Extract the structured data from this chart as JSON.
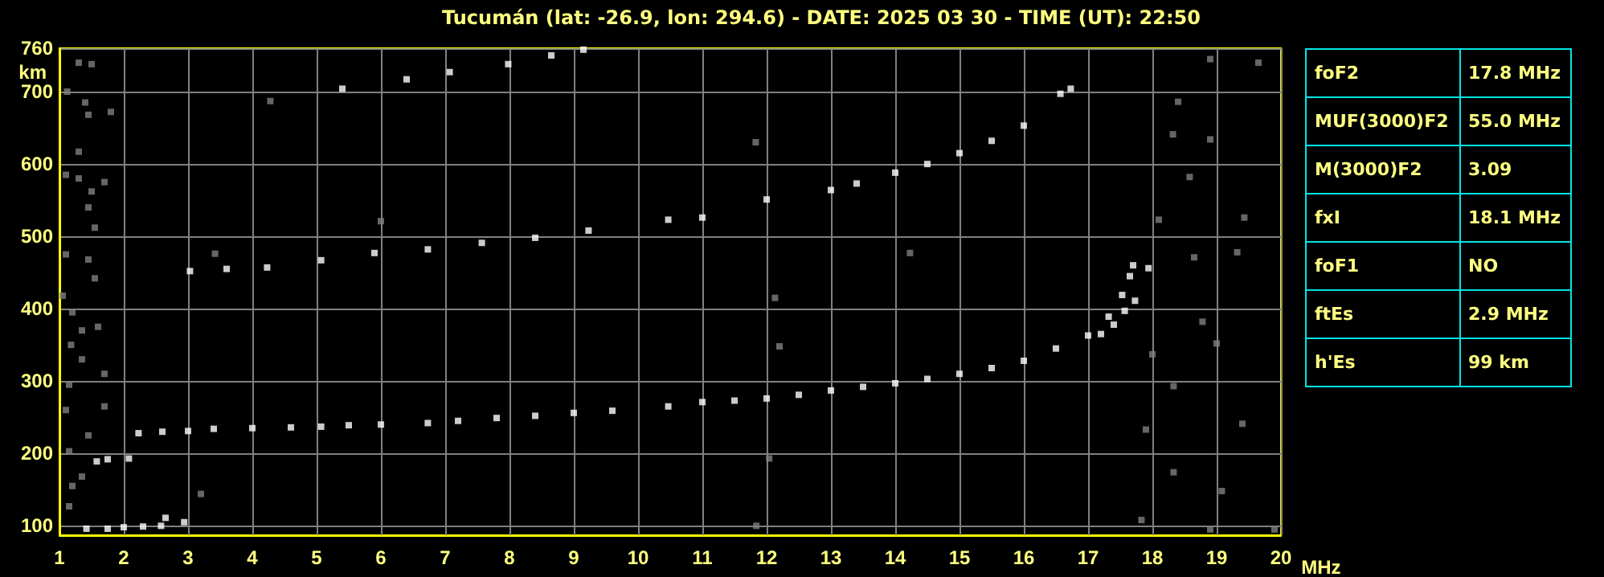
{
  "chart_data": [
    {
      "type": "scatter",
      "title": "Tucumán (lat: -26.9, lon: 294.6) - DATE: 2025 03 30 - TIME (UT): 22:50",
      "xlabel": "MHz",
      "ylabel": "km",
      "xlim": [
        1,
        20
      ],
      "xticks": [
        1,
        2,
        3,
        4,
        5,
        6,
        7,
        8,
        9,
        10,
        11,
        12,
        13,
        14,
        15,
        16,
        17,
        18,
        19,
        20
      ],
      "ylim": [
        87,
        760
      ],
      "yticks": [
        100,
        200,
        300,
        400,
        500,
        600,
        700,
        760
      ],
      "grid": true,
      "marker": "square",
      "series": [
        {
          "color": "#ffffff",
          "x": [
            2.23,
            2.6,
            3,
            3.4,
            4,
            4.6,
            5.07,
            5.5,
            6,
            6.73,
            7.2,
            7.8,
            8.4,
            9,
            9.6,
            10.47,
            11,
            11.5,
            12,
            12.5,
            13,
            13.5,
            14,
            14.5,
            15,
            15.5,
            16,
            16.5,
            17,
            17.32,
            17.53,
            17.65,
            17.7
          ],
          "values": [
            228,
            230,
            231,
            234,
            235,
            236,
            237,
            239,
            240,
            242,
            245,
            249,
            252,
            256,
            259,
            265,
            271,
            273,
            276,
            281,
            287,
            292,
            297,
            303,
            310,
            318,
            328,
            345,
            363,
            389,
            419,
            445,
            460
          ]
        },
        {
          "color": "#ffffff",
          "x": [
            17.2,
            17.4,
            17.57,
            17.73,
            17.94
          ],
          "values": [
            365,
            378,
            397,
            411,
            456
          ]
        },
        {
          "color": "#ffffff",
          "x": [
            3.03,
            3.6,
            4.23,
            5.07,
            5.9,
            6.73,
            7.57,
            8.4,
            9.23,
            10.47,
            11,
            12,
            13,
            13.4,
            14,
            14.5,
            15,
            15.5,
            16,
            16.57,
            16.73
          ],
          "values": [
            452,
            455,
            457,
            467,
            477,
            482,
            491,
            498,
            508,
            523,
            526,
            551,
            564,
            573,
            588,
            600,
            615,
            632,
            653,
            697,
            704
          ]
        },
        {
          "color": "#ffffff",
          "x": [
            5.4,
            6.4,
            7.07,
            7.98,
            8.65,
            9.15
          ],
          "values": [
            704,
            717,
            727,
            738,
            750,
            758
          ]
        },
        {
          "color": "#ffffff",
          "x": [
            1.42,
            1.75,
            2.0,
            2.3,
            2.58,
            2.65,
            2.94,
            1.58,
            1.75,
            2.08
          ],
          "values": [
            96,
            96,
            98,
            99,
            100,
            111,
            105,
            189,
            192,
            193
          ]
        },
        {
          "color": "#808080",
          "x": [
            1.12,
            1.3,
            1.5,
            1.4,
            1.45,
            1.8,
            1.3,
            1.1,
            1.3,
            1.5,
            1.7,
            1.45,
            1.55,
            1.1,
            1.45,
            1.55,
            1.05,
            1.2,
            1.35,
            1.6,
            1.18,
            1.35,
            1.7,
            1.15,
            1.7,
            1.1,
            1.45,
            1.15,
            1.35,
            1.2,
            1.15,
            4.28,
            6.0,
            3.42,
            3.2,
            11.83,
            12.13,
            12.2,
            14.23,
            12.04,
            11.84,
            18.9,
            19.65,
            18.4,
            18.32,
            18.9,
            18.58,
            18.1,
            19.43,
            18.65,
            19.32,
            18.78,
            19.0,
            18.0,
            18.33,
            19.4,
            17.9,
            18.33,
            19.08,
            17.83,
            18.9,
            19.9
          ],
          "values": [
            700,
            740,
            738,
            685,
            668,
            672,
            617,
            585,
            580,
            562,
            575,
            540,
            512,
            475,
            468,
            442,
            418,
            395,
            370,
            375,
            350,
            330,
            310,
            295,
            265,
            260,
            225,
            203,
            168,
            155,
            127,
            687,
            521,
            476,
            144,
            630,
            415,
            348,
            477,
            193,
            100,
            745,
            740,
            686,
            641,
            634,
            582,
            523,
            526,
            471,
            478,
            382,
            352,
            337,
            293,
            241,
            233,
            174,
            148,
            108,
            95,
            95
          ]
        }
      ]
    },
    {
      "type": "other",
      "annotations": [
        "foF2",
        "17.8 MHz",
        "MUF(3000)F2",
        "55.0 MHz",
        "M(3000)F2",
        "3.09",
        "fxI",
        "18.1 MHz",
        "foF1",
        "NO",
        "ftEs",
        "2.9 MHz",
        "h'Es",
        "99 km"
      ]
    }
  ]
}
